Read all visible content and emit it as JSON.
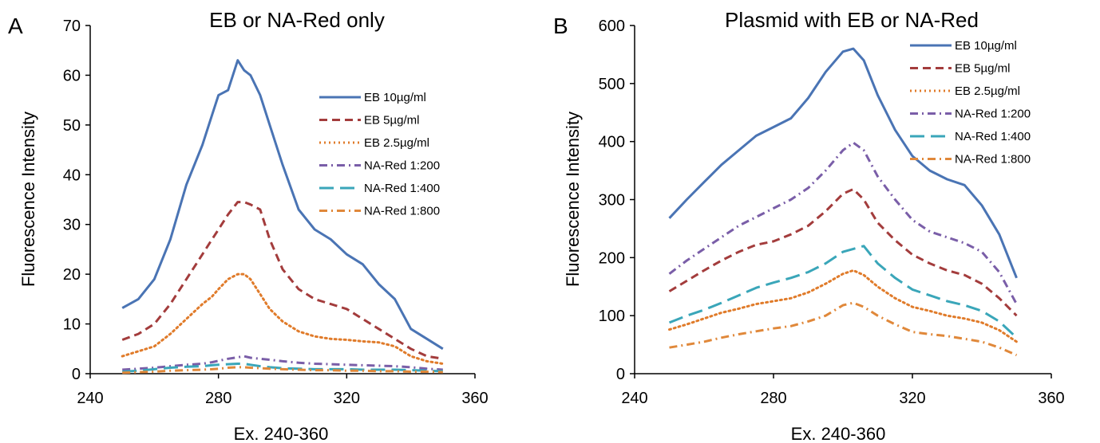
{
  "chart_data": [
    {
      "type": "line",
      "panel_label": "A",
      "title": "EB or NA-Red only",
      "xlabel": "Ex. 240-360",
      "ylabel": "Fluorescence Intensity",
      "xlim": [
        240,
        360
      ],
      "ylim": [
        0,
        70
      ],
      "xticks": [
        "240",
        "280",
        "320",
        "360"
      ],
      "yticks": [
        "0",
        "10",
        "20",
        "30",
        "40",
        "50",
        "60",
        "70"
      ],
      "grid": false,
      "legend_position": "right",
      "x": [
        250,
        255,
        260,
        265,
        270,
        275,
        278,
        280,
        283,
        286,
        288,
        290,
        293,
        296,
        300,
        305,
        310,
        315,
        320,
        325,
        330,
        335,
        340,
        345,
        350
      ],
      "series": [
        {
          "name": "EB 10µg/ml",
          "color": "#4a74b4",
          "dash": "solid",
          "values": [
            13.2,
            15,
            19,
            27,
            38,
            46,
            52,
            56,
            57,
            63,
            61,
            60,
            56,
            50,
            42,
            33,
            29,
            27,
            24,
            22,
            18,
            15,
            9,
            7,
            5
          ]
        },
        {
          "name": "EB 5µg/ml",
          "color": "#a33c3c",
          "dash": "dash",
          "values": [
            6.8,
            8,
            10,
            14,
            19,
            24,
            27,
            29,
            32,
            34.5,
            34.5,
            34,
            33,
            27,
            21,
            17,
            15,
            14,
            13,
            11,
            9,
            7,
            5,
            3.5,
            3
          ]
        },
        {
          "name": "EB 2.5µg/ml",
          "color": "#e07b2a",
          "dash": "dot",
          "values": [
            3.5,
            4.5,
            5.5,
            8,
            11,
            14,
            15.5,
            17,
            19,
            20,
            20,
            19,
            16,
            13,
            10.5,
            8.5,
            7.5,
            7,
            6.8,
            6.5,
            6.3,
            5.5,
            3.5,
            2.5,
            2
          ]
        },
        {
          "name": "NA-Red 1:200",
          "color": "#7a5ea8",
          "dash": "dashdot",
          "values": [
            0.8,
            1,
            1.2,
            1.5,
            1.8,
            2,
            2.3,
            2.6,
            3,
            3.3,
            3.5,
            3.2,
            3,
            2.8,
            2.5,
            2.2,
            2,
            1.9,
            1.8,
            1.7,
            1.6,
            1.5,
            1.3,
            1,
            0.8
          ]
        },
        {
          "name": "NA-Red 1:400",
          "color": "#3aa6b9",
          "dash": "longdash",
          "values": [
            0.4,
            0.6,
            0.9,
            1.2,
            1.4,
            1.5,
            1.7,
            1.8,
            1.9,
            2,
            2,
            1.8,
            1.5,
            1.3,
            1.1,
            1,
            0.9,
            0.9,
            0.9,
            0.8,
            0.8,
            0.8,
            0.7,
            0.6,
            0.5
          ]
        },
        {
          "name": "NA-Red 1:800",
          "color": "#e0883a",
          "dash": "dashdot",
          "values": [
            0.2,
            0.3,
            0.4,
            0.6,
            0.7,
            0.8,
            0.9,
            1,
            1.2,
            1.3,
            1.3,
            1.2,
            1.1,
            1,
            0.9,
            0.8,
            0.7,
            0.7,
            0.6,
            0.6,
            0.5,
            0.5,
            0.4,
            0.4,
            0.3
          ]
        }
      ]
    },
    {
      "type": "line",
      "panel_label": "B",
      "title": "Plasmid with EB or NA-Red",
      "xlabel": "Ex. 240-360",
      "ylabel": "Fluorescence Intensity",
      "xlim": [
        240,
        360
      ],
      "ylim": [
        0,
        600
      ],
      "xticks": [
        "240",
        "280",
        "320",
        "360"
      ],
      "yticks": [
        "0",
        "100",
        "200",
        "300",
        "400",
        "500",
        "600"
      ],
      "grid": false,
      "legend_position": "top-right",
      "x": [
        250,
        255,
        260,
        265,
        270,
        275,
        280,
        285,
        290,
        295,
        300,
        303,
        306,
        310,
        315,
        320,
        325,
        330,
        335,
        340,
        345,
        350
      ],
      "series": [
        {
          "name": "EB 10µg/ml",
          "color": "#4a74b4",
          "dash": "solid",
          "values": [
            268,
            300,
            330,
            360,
            385,
            410,
            425,
            440,
            475,
            520,
            555,
            560,
            540,
            480,
            420,
            375,
            350,
            335,
            325,
            290,
            240,
            165
          ]
        },
        {
          "name": "EB 5µg/ml",
          "color": "#a33c3c",
          "dash": "dash",
          "values": [
            142,
            160,
            178,
            195,
            210,
            222,
            228,
            240,
            255,
            280,
            310,
            318,
            300,
            260,
            230,
            205,
            190,
            178,
            170,
            155,
            130,
            100
          ]
        },
        {
          "name": "EB 2.5µg/ml",
          "color": "#e07b2a",
          "dash": "dot",
          "values": [
            76,
            85,
            95,
            105,
            112,
            120,
            125,
            130,
            140,
            155,
            172,
            178,
            170,
            150,
            130,
            115,
            108,
            100,
            95,
            88,
            75,
            55
          ]
        },
        {
          "name": "NA-Red 1:200",
          "color": "#7a5ea8",
          "dash": "dashdot",
          "values": [
            172,
            195,
            215,
            235,
            255,
            270,
            285,
            300,
            320,
            350,
            385,
            398,
            385,
            340,
            300,
            265,
            245,
            235,
            225,
            210,
            175,
            120
          ]
        },
        {
          "name": "NA-Red 1:400",
          "color": "#3aa6b9",
          "dash": "longdash",
          "values": [
            88,
            100,
            110,
            122,
            135,
            148,
            157,
            165,
            175,
            190,
            210,
            215,
            220,
            190,
            165,
            145,
            135,
            125,
            118,
            108,
            90,
            62
          ]
        },
        {
          "name": "NA-Red 1:800",
          "color": "#e0883a",
          "dash": "dashdot",
          "values": [
            45,
            50,
            55,
            62,
            68,
            73,
            78,
            82,
            90,
            100,
            118,
            122,
            115,
            100,
            85,
            72,
            68,
            65,
            60,
            55,
            45,
            32
          ]
        }
      ]
    }
  ]
}
